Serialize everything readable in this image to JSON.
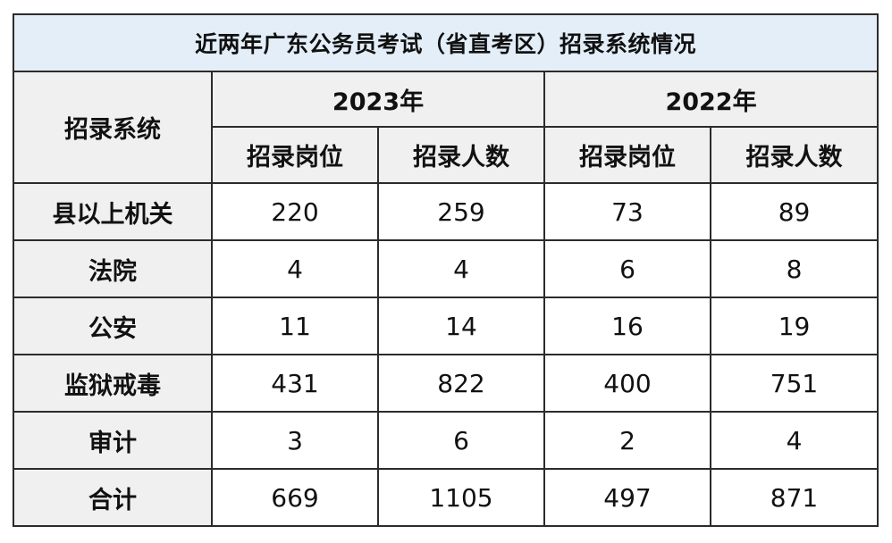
{
  "title": "近两年广东公务员考试（省直考区）招录系统情况",
  "header": {
    "system_label": "招录系统",
    "years": [
      "2023年",
      "2022年"
    ],
    "sub_labels": [
      "招录岗位",
      "招录人数",
      "招录岗位",
      "招录人数"
    ]
  },
  "rows": [
    {
      "label": "县以上机关",
      "values": [
        "220",
        "259",
        "73",
        "89"
      ]
    },
    {
      "label": "法院",
      "values": [
        "4",
        "4",
        "6",
        "8"
      ]
    },
    {
      "label": "公安",
      "values": [
        "11",
        "14",
        "16",
        "19"
      ]
    },
    {
      "label": "监狱戒毒",
      "values": [
        "431",
        "822",
        "400",
        "751"
      ]
    },
    {
      "label": "审计",
      "values": [
        "3",
        "6",
        "2",
        "4"
      ]
    },
    {
      "label": "合计",
      "values": [
        "669",
        "1105",
        "497",
        "871"
      ]
    }
  ],
  "colors": {
    "title_bg": "#e4eef9",
    "header_bg": "#f0f0f0",
    "border": "#2b2b2b"
  }
}
